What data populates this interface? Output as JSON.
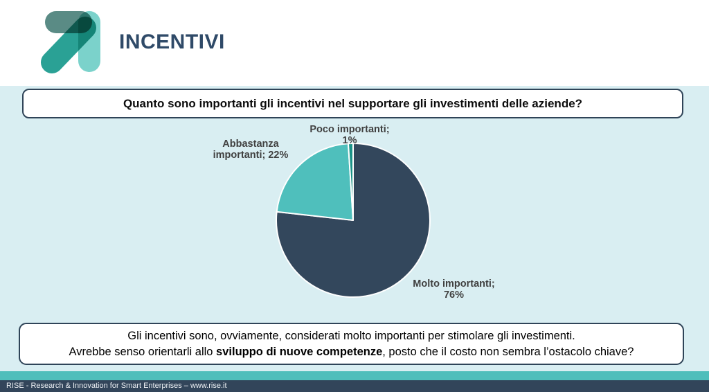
{
  "slide": {
    "title": "INCENTIVI",
    "question": "Quanto sono importanti gli incentivi nel supportare gli investimenti delle aziende?",
    "conclusion": {
      "line1": "Gli incentivi sono, ovviamente, considerati molto importanti per stimolare gli investimenti.",
      "line2_prefix": "Avrebbe senso orientarli allo ",
      "line2_bold": "sviluppo di nuove competenze",
      "line2_suffix": ", posto che il costo non sembra l’ostacolo chiave?"
    },
    "footer": "RISE - Research & Innovation for Smart Enterprises – www.rise.it"
  },
  "chart_data": {
    "type": "pie",
    "title": "",
    "legend": "none",
    "labels_position": "outside",
    "start_angle_deg": 0,
    "clockwise": true,
    "slices": [
      {
        "label": "Molto importanti",
        "value": 76,
        "display": "76%",
        "color": "#33475C",
        "label_lines": [
          "Molto importanti;",
          "76%"
        ]
      },
      {
        "label": "Abbastanza importanti",
        "value": 22,
        "display": "22%",
        "color": "#4FBFBC",
        "label_lines": [
          "Abbastanza",
          "importanti; 22%"
        ]
      },
      {
        "label": "Poco importanti",
        "value": 1,
        "display": "1%",
        "color": "#1B9388",
        "label_lines": [
          "Poco importanti;",
          "1%"
        ]
      }
    ]
  },
  "colors": {
    "content_background": "#D9EEF2",
    "box_border": "#2F4458",
    "title_color": "#2F4A68",
    "chart_label_color": "#404040",
    "slice_stroke": "#FFFFFF",
    "footer_teal": "#4FBEBB",
    "footer_navy": "#32455A",
    "footer_text": "#ECF0F4",
    "logo_dark_teal": "#5A8B85",
    "logo_light_teal": "#7BD2CB",
    "logo_green_teal": "#2AA195"
  }
}
